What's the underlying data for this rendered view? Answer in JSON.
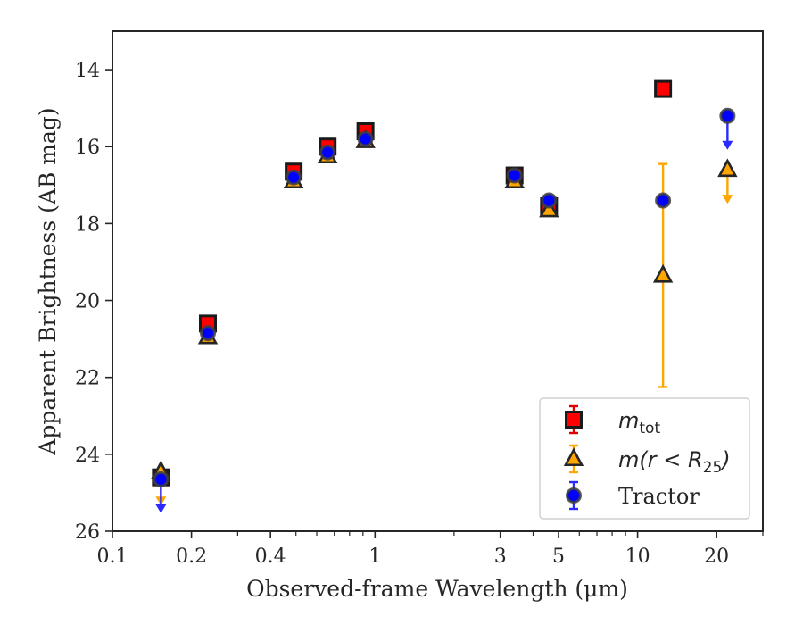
{
  "chart_data": {
    "type": "scatter",
    "xlabel": "Observed-frame Wavelength (μm)",
    "ylabel": "Apparent Brightness (AB mag)",
    "xscale": "log",
    "xlim": [
      0.1,
      30
    ],
    "ylim": [
      26,
      13
    ],
    "y_inverted": true,
    "grid": false,
    "legend_position": "bottom-right",
    "x_ticks": [
      {
        "value": 0.1,
        "label": "0.1"
      },
      {
        "value": 0.2,
        "label": "0.2"
      },
      {
        "value": 0.4,
        "label": "0.4"
      },
      {
        "value": 1,
        "label": "1"
      },
      {
        "value": 3,
        "label": "3"
      },
      {
        "value": 5,
        "label": "5"
      },
      {
        "value": 10,
        "label": "10"
      },
      {
        "value": 20,
        "label": "20"
      }
    ],
    "y_ticks": [
      {
        "value": 14,
        "label": "14"
      },
      {
        "value": 16,
        "label": "16"
      },
      {
        "value": 18,
        "label": "18"
      },
      {
        "value": 20,
        "label": "20"
      },
      {
        "value": 22,
        "label": "22"
      },
      {
        "value": 24,
        "label": "24"
      },
      {
        "value": 26,
        "label": "26"
      }
    ],
    "series": [
      {
        "name": "m_tot",
        "legend_main": "m",
        "legend_sub": "tot",
        "marker": "square",
        "color": "#ff0000",
        "edge": "#1a1a1a",
        "errcolor": "#e00000",
        "points": [
          {
            "x": 0.153,
            "y": 24.6,
            "upper_limit": false
          },
          {
            "x": 0.231,
            "y": 20.6
          },
          {
            "x": 0.49,
            "y": 16.65
          },
          {
            "x": 0.66,
            "y": 16.0
          },
          {
            "x": 0.92,
            "y": 15.6
          },
          {
            "x": 3.4,
            "y": 16.75
          },
          {
            "x": 4.6,
            "y": 17.55
          },
          {
            "x": 12.5,
            "y": 14.5
          }
        ]
      },
      {
        "name": "m(r < R25)",
        "legend_main": "m(r < R",
        "legend_sub": "25",
        "legend_tail": ")",
        "marker": "triangle",
        "color": "#ffa500",
        "edge": "#262626",
        "errcolor": "#ffa500",
        "points": [
          {
            "x": 0.153,
            "y": 24.45,
            "upper_limit": true
          },
          {
            "x": 0.231,
            "y": 20.95
          },
          {
            "x": 0.49,
            "y": 16.9
          },
          {
            "x": 0.66,
            "y": 16.25
          },
          {
            "x": 0.92,
            "y": 15.85
          },
          {
            "x": 3.4,
            "y": 16.9
          },
          {
            "x": 4.6,
            "y": 17.65
          },
          {
            "x": 12.5,
            "y": 19.35,
            "yerr_low": 16.45,
            "yerr_high": 22.25
          },
          {
            "x": 22,
            "y": 16.6,
            "upper_limit": true
          }
        ]
      },
      {
        "name": "Tractor",
        "legend_main": "Tractor",
        "marker": "circle",
        "color": "#0000ff",
        "edge": "#404040",
        "errcolor": "#2a2aff",
        "points": [
          {
            "x": 0.153,
            "y": 24.65,
            "upper_limit": true
          },
          {
            "x": 0.231,
            "y": 20.85
          },
          {
            "x": 0.49,
            "y": 16.8
          },
          {
            "x": 0.66,
            "y": 16.15
          },
          {
            "x": 0.92,
            "y": 15.8
          },
          {
            "x": 3.4,
            "y": 16.75
          },
          {
            "x": 4.6,
            "y": 17.4
          },
          {
            "x": 12.5,
            "y": 17.4
          },
          {
            "x": 22,
            "y": 15.2,
            "upper_limit": true
          }
        ]
      }
    ]
  }
}
